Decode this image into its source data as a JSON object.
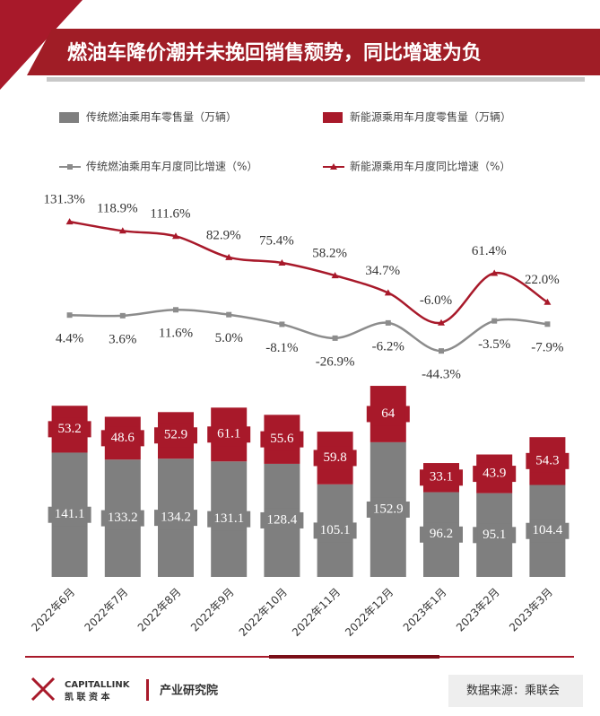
{
  "chart_data": {
    "type": "combo",
    "title": "燃油车降价潮并未挽回销售颓势，同比增速为负",
    "categories": [
      "2022年6月",
      "2022年7月",
      "2022年8月",
      "2022年9月",
      "2022年10月",
      "2022年11月",
      "2022年12月",
      "2023年1月",
      "2023年2月",
      "2023年3月"
    ],
    "stacked": true,
    "ylim": [
      0,
      220
    ],
    "y2lim": [
      -60,
      140
    ],
    "series": [
      {
        "name": "传统燃油乘用车零售量（万辆）",
        "type": "bar",
        "color": "#7f7f7f",
        "values": [
          141.1,
          133.2,
          134.2,
          131.1,
          128.4,
          105.1,
          152.9,
          96.2,
          95.1,
          104.4
        ]
      },
      {
        "name": "新能源乘用车月度零售量（万辆）",
        "type": "bar",
        "color": "#a8192a",
        "values": [
          53.2,
          48.6,
          52.9,
          61.1,
          55.6,
          59.8,
          64,
          33.1,
          43.9,
          54.3
        ]
      },
      {
        "name": "传统燃油乘用车月度同比增速（%）",
        "type": "line",
        "axis": "y2",
        "color": "#8c8c8c",
        "marker": "square",
        "values": [
          4.4,
          3.6,
          11.6,
          5.0,
          -8.1,
          -26.9,
          -6.2,
          -44.3,
          -3.5,
          -7.9
        ],
        "value_labels": [
          "4.4%",
          "3.6%",
          "11.6%",
          "5.0%",
          "-8.1%",
          "-26.9%",
          "-6.2%",
          "-44.3%",
          "-3.5%",
          "-7.9%"
        ]
      },
      {
        "name": "新能源乘用车月度同比增速（%）",
        "type": "line",
        "axis": "y2",
        "color": "#a8192a",
        "marker": "triangle",
        "values": [
          131.3,
          118.9,
          111.6,
          82.9,
          75.4,
          58.2,
          34.7,
          -6.0,
          61.4,
          22.0
        ],
        "value_labels": [
          "131.3%",
          "118.9%",
          "111.6%",
          "82.9%",
          "75.4%",
          "58.2%",
          "34.7%",
          "-6.0%",
          "61.4%",
          "22.0%"
        ]
      }
    ]
  },
  "footer": {
    "logo_en": "CAPITALLINK",
    "logo_cn": "凯 联 资 本",
    "dept": "产业研究院",
    "source": "数据来源：乘联会"
  }
}
